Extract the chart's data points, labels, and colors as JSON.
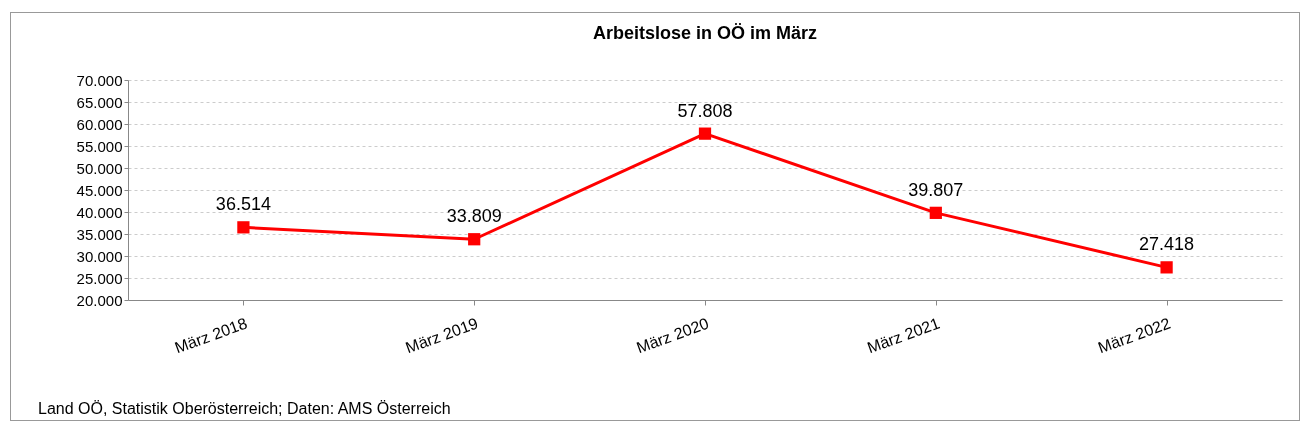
{
  "chart_data": {
    "type": "line",
    "title": "Arbeitslose in OÖ im März",
    "categories": [
      "März 2018",
      "März 2019",
      "März 2020",
      "März 2021",
      "März 2022"
    ],
    "series": [
      {
        "color": "#ff0000",
        "values": [
          36514,
          33809,
          57808,
          39807,
          27418
        ],
        "value_labels": [
          "36.514",
          "33.809",
          "57.808",
          "39.807",
          "27.418"
        ]
      }
    ],
    "ylim": [
      20000,
      70000
    ],
    "yticks": [
      {
        "value": 20000,
        "label": "20.000"
      },
      {
        "value": 25000,
        "label": "25.000"
      },
      {
        "value": 30000,
        "label": "30.000"
      },
      {
        "value": 35000,
        "label": "35.000"
      },
      {
        "value": 40000,
        "label": "40.000"
      },
      {
        "value": 45000,
        "label": "45.000"
      },
      {
        "value": 50000,
        "label": "50.000"
      },
      {
        "value": 55000,
        "label": "55.000"
      },
      {
        "value": 60000,
        "label": "60.000"
      },
      {
        "value": 65000,
        "label": "65.000"
      },
      {
        "value": 70000,
        "label": "70.000"
      }
    ],
    "grid": "y",
    "marker": "square",
    "line_style": "solid",
    "annotations": [
      "Land OÖ,  Statistik Oberösterreich; Daten: AMS Österreich"
    ]
  }
}
